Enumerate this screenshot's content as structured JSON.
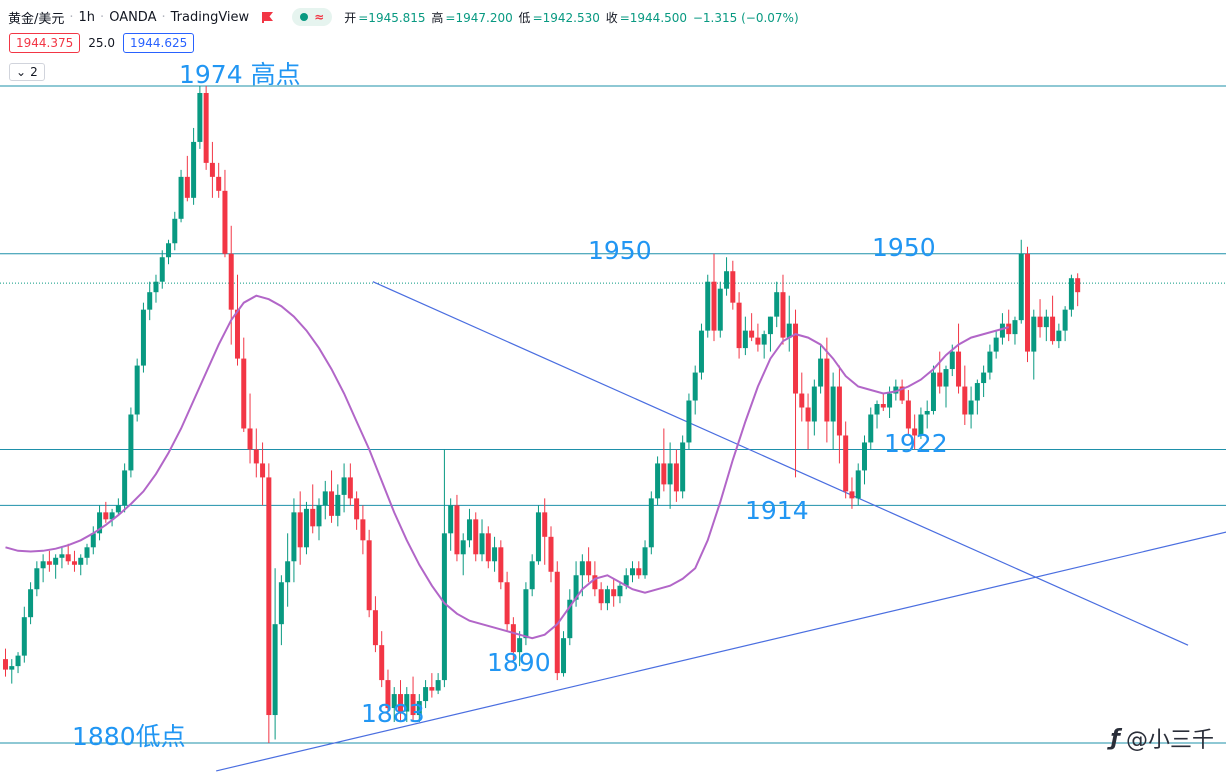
{
  "header": {
    "symbol": "黄金/美元",
    "interval": "1h",
    "broker": "OANDA",
    "platform": "TradingView",
    "ohlc": {
      "open_label": "开",
      "open": "=1945.815",
      "high_label": "高",
      "high": "=1947.200",
      "low_label": "低",
      "low": "=1942.530",
      "close_label": "收",
      "close": "=1944.500",
      "change": "−1.315 (−0.07%)"
    },
    "sell_price": "1944.375",
    "spread": "25.0",
    "buy_price": "1944.625",
    "indicators_count": "2"
  },
  "colors": {
    "up": "#089981",
    "down": "#f23645",
    "ma": "#b266c8",
    "hline": "#1e90aa",
    "trendline": "#4a6ee0",
    "annotation": "#2196f3"
  },
  "annotations": {
    "high_1974": "1974 高点",
    "res_left_1950": "1950",
    "res_right_1950": "1950",
    "sup_1922": "1922",
    "sup_1914": "1914",
    "low_1890": "1890",
    "low_1883": "1883",
    "low_1880": "1880低点"
  },
  "watermark": {
    "logo": "ƒ",
    "text": "@小三千"
  },
  "chart_data": {
    "type": "candlestick",
    "symbol": "黄金/美元",
    "interval": "1h",
    "ylim": [
      1876,
      1975
    ],
    "horizontal_levels": [
      1974,
      1950,
      1945.8,
      1922,
      1914,
      1880
    ],
    "trendlines": [
      {
        "name": "descending",
        "points": [
          [
            59,
            1946
          ],
          [
            189,
            1894
          ]
        ]
      },
      {
        "name": "ascending",
        "points": [
          [
            34,
            1876
          ],
          [
            199,
            1911
          ]
        ]
      }
    ],
    "candles_ohlc": [
      [
        1892.0,
        1893.5,
        1889.5,
        1890.5
      ],
      [
        1890.5,
        1892.0,
        1888.5,
        1891.0
      ],
      [
        1891.0,
        1893.0,
        1890.0,
        1892.5
      ],
      [
        1892.5,
        1899.5,
        1891.5,
        1898.0
      ],
      [
        1898.0,
        1903.0,
        1897.0,
        1902.0
      ],
      [
        1902.0,
        1906.0,
        1901.0,
        1905.0
      ],
      [
        1905.0,
        1907.0,
        1903.0,
        1906.0
      ],
      [
        1906.0,
        1907.5,
        1904.5,
        1905.5
      ],
      [
        1905.5,
        1907.0,
        1903.5,
        1906.5
      ],
      [
        1906.5,
        1908.0,
        1905.0,
        1907.0
      ],
      [
        1907.0,
        1908.5,
        1905.5,
        1906.0
      ],
      [
        1906.0,
        1907.5,
        1904.5,
        1905.5
      ],
      [
        1905.5,
        1907.0,
        1904.0,
        1906.5
      ],
      [
        1906.5,
        1908.5,
        1905.5,
        1908.0
      ],
      [
        1908.0,
        1911.0,
        1907.0,
        1910.0
      ],
      [
        1910.0,
        1914.0,
        1909.0,
        1913.0
      ],
      [
        1913.0,
        1914.5,
        1911.5,
        1912.0
      ],
      [
        1912.0,
        1913.5,
        1911.0,
        1913.0
      ],
      [
        1913.0,
        1915.0,
        1912.5,
        1914.0
      ],
      [
        1914.0,
        1920.0,
        1913.0,
        1919.0
      ],
      [
        1919.0,
        1928.0,
        1918.0,
        1927.0
      ],
      [
        1927.0,
        1935.0,
        1926.0,
        1934.0
      ],
      [
        1934.0,
        1943.0,
        1933.0,
        1942.0
      ],
      [
        1942.0,
        1946.0,
        1940.5,
        1944.5
      ],
      [
        1944.5,
        1947.0,
        1943.0,
        1946.0
      ],
      [
        1946.0,
        1950.5,
        1945.0,
        1949.5
      ],
      [
        1949.5,
        1952.0,
        1948.5,
        1951.5
      ],
      [
        1951.5,
        1956.0,
        1950.5,
        1955.0
      ],
      [
        1955.0,
        1962.0,
        1954.5,
        1961.0
      ],
      [
        1961.0,
        1964.0,
        1957.5,
        1958.0
      ],
      [
        1958.0,
        1968.0,
        1957.0,
        1966.0
      ],
      [
        1966.0,
        1974.0,
        1965.0,
        1973.0
      ],
      [
        1973.0,
        1974.0,
        1962.0,
        1963.0
      ],
      [
        1963.0,
        1966.0,
        1958.0,
        1961.0
      ],
      [
        1961.0,
        1963.0,
        1958.0,
        1959.0
      ],
      [
        1959.0,
        1962.0,
        1949.5,
        1950.0
      ],
      [
        1950.0,
        1954.0,
        1937.0,
        1942.0
      ],
      [
        1942.0,
        1947.0,
        1934.0,
        1935.0
      ],
      [
        1935.0,
        1938.0,
        1924.5,
        1925.0
      ],
      [
        1925.0,
        1930.0,
        1920.0,
        1922.0
      ],
      [
        1922.0,
        1925.0,
        1918.0,
        1920.0
      ],
      [
        1920.0,
        1923.0,
        1914.0,
        1918.0
      ],
      [
        1918.0,
        1920.0,
        1880.0,
        1884.0
      ],
      [
        1884.0,
        1905.0,
        1880.5,
        1897.0
      ],
      [
        1897.0,
        1904.0,
        1894.0,
        1903.0
      ],
      [
        1903.0,
        1910.0,
        1899.5,
        1906.0
      ],
      [
        1906.0,
        1915.0,
        1903.0,
        1913.0
      ],
      [
        1913.0,
        1916.0,
        1905.5,
        1908.0
      ],
      [
        1908.0,
        1914.5,
        1907.0,
        1913.5
      ],
      [
        1913.5,
        1917.0,
        1910.0,
        1911.0
      ],
      [
        1911.0,
        1915.0,
        1909.0,
        1914.0
      ],
      [
        1914.0,
        1917.5,
        1912.0,
        1916.0
      ],
      [
        1916.0,
        1919.0,
        1911.5,
        1912.5
      ],
      [
        1912.5,
        1917.0,
        1911.0,
        1915.5
      ],
      [
        1915.5,
        1920.0,
        1913.0,
        1918.0
      ],
      [
        1918.0,
        1920.0,
        1914.0,
        1915.0
      ],
      [
        1915.0,
        1916.0,
        1910.5,
        1912.0
      ],
      [
        1912.0,
        1914.0,
        1907.0,
        1909.0
      ],
      [
        1909.0,
        1910.5,
        1898.0,
        1899.0
      ],
      [
        1899.0,
        1901.0,
        1893.0,
        1894.0
      ],
      [
        1894.0,
        1896.0,
        1888.0,
        1889.0
      ],
      [
        1889.0,
        1890.5,
        1884.0,
        1885.0
      ],
      [
        1885.0,
        1888.0,
        1883.0,
        1887.0
      ],
      [
        1887.0,
        1889.0,
        1883.0,
        1884.5
      ],
      [
        1884.5,
        1888.0,
        1883.0,
        1887.0
      ],
      [
        1887.0,
        1889.5,
        1883.0,
        1884.0
      ],
      [
        1884.0,
        1887.0,
        1883.0,
        1886.0
      ],
      [
        1886.0,
        1889.0,
        1885.0,
        1888.0
      ],
      [
        1888.0,
        1890.0,
        1886.5,
        1887.5
      ],
      [
        1887.5,
        1890.0,
        1887.0,
        1889.0
      ],
      [
        1889.0,
        1922.0,
        1888.0,
        1910.0
      ],
      [
        1910.0,
        1915.0,
        1907.5,
        1914.0
      ],
      [
        1914.0,
        1915.5,
        1906.0,
        1907.0
      ],
      [
        1907.0,
        1910.0,
        1904.0,
        1909.0
      ],
      [
        1909.0,
        1913.5,
        1908.0,
        1912.0
      ],
      [
        1912.0,
        1913.0,
        1906.0,
        1907.0
      ],
      [
        1907.0,
        1912.0,
        1906.0,
        1910.0
      ],
      [
        1910.0,
        1911.0,
        1905.0,
        1906.0
      ],
      [
        1906.0,
        1909.5,
        1904.5,
        1908.0
      ],
      [
        1908.0,
        1909.0,
        1902.0,
        1903.0
      ],
      [
        1903.0,
        1904.5,
        1896.0,
        1897.0
      ],
      [
        1897.0,
        1898.0,
        1891.5,
        1893.0
      ],
      [
        1893.0,
        1896.0,
        1891.0,
        1895.0
      ],
      [
        1895.0,
        1903.0,
        1894.0,
        1902.0
      ],
      [
        1902.0,
        1907.0,
        1901.0,
        1906.0
      ],
      [
        1906.0,
        1914.0,
        1905.5,
        1913.0
      ],
      [
        1913.0,
        1915.0,
        1905.5,
        1909.5
      ],
      [
        1909.5,
        1911.0,
        1903.0,
        1904.5
      ],
      [
        1904.5,
        1906.0,
        1889.0,
        1890.0
      ],
      [
        1890.0,
        1896.0,
        1889.5,
        1895.0
      ],
      [
        1895.0,
        1902.0,
        1894.0,
        1900.5
      ],
      [
        1900.5,
        1906.0,
        1899.5,
        1904.0
      ],
      [
        1904.0,
        1907.0,
        1901.0,
        1906.0
      ],
      [
        1906.0,
        1908.0,
        1903.0,
        1904.0
      ],
      [
        1904.0,
        1906.0,
        1901.0,
        1902.0
      ],
      [
        1902.0,
        1903.0,
        1899.0,
        1900.0
      ],
      [
        1900.0,
        1902.5,
        1899.0,
        1902.0
      ],
      [
        1902.0,
        1903.5,
        1899.5,
        1901.0
      ],
      [
        1901.0,
        1903.0,
        1900.0,
        1902.5
      ],
      [
        1902.5,
        1905.0,
        1902.0,
        1904.0
      ],
      [
        1904.0,
        1906.0,
        1903.0,
        1905.0
      ],
      [
        1905.0,
        1906.0,
        1903.5,
        1904.0
      ],
      [
        1904.0,
        1909.0,
        1903.5,
        1908.0
      ],
      [
        1908.0,
        1916.0,
        1907.0,
        1915.0
      ],
      [
        1915.0,
        1921.0,
        1914.0,
        1920.0
      ],
      [
        1920.0,
        1925.0,
        1916.0,
        1917.0
      ],
      [
        1917.0,
        1923.0,
        1913.5,
        1920.0
      ],
      [
        1920.0,
        1922.0,
        1914.5,
        1916.0
      ],
      [
        1916.0,
        1924.0,
        1915.0,
        1923.0
      ],
      [
        1923.0,
        1930.0,
        1922.0,
        1929.0
      ],
      [
        1929.0,
        1934.0,
        1927.0,
        1933.0
      ],
      [
        1933.0,
        1940.0,
        1932.0,
        1939.0
      ],
      [
        1939.0,
        1947.0,
        1938.0,
        1946.0
      ],
      [
        1946.0,
        1950.0,
        1937.5,
        1939.0
      ],
      [
        1939.0,
        1946.0,
        1938.0,
        1945.0
      ],
      [
        1945.0,
        1949.5,
        1944.0,
        1947.5
      ],
      [
        1947.5,
        1949.0,
        1942.0,
        1943.0
      ],
      [
        1943.0,
        1944.5,
        1935.0,
        1936.5
      ],
      [
        1936.5,
        1941.0,
        1935.5,
        1939.0
      ],
      [
        1939.0,
        1941.5,
        1937.5,
        1938.0
      ],
      [
        1938.0,
        1940.0,
        1936.0,
        1937.0
      ],
      [
        1937.0,
        1939.0,
        1935.0,
        1938.5
      ],
      [
        1938.5,
        1941.0,
        1936.0,
        1941.0
      ],
      [
        1941.0,
        1946.0,
        1939.5,
        1944.5
      ],
      [
        1944.5,
        1947.0,
        1937.0,
        1938.0
      ],
      [
        1938.0,
        1944.0,
        1936.0,
        1940.0
      ],
      [
        1940.0,
        1942.0,
        1918.0,
        1930.0
      ],
      [
        1930.0,
        1933.0,
        1926.0,
        1928.0
      ],
      [
        1928.0,
        1930.0,
        1922.0,
        1926.0
      ],
      [
        1926.0,
        1932.0,
        1924.0,
        1931.0
      ],
      [
        1931.0,
        1937.0,
        1930.0,
        1935.0
      ],
      [
        1935.0,
        1938.0,
        1923.0,
        1926.0
      ],
      [
        1926.0,
        1933.0,
        1922.0,
        1931.0
      ],
      [
        1931.0,
        1934.0,
        1920.0,
        1924.0
      ],
      [
        1924.0,
        1926.0,
        1915.0,
        1916.0
      ],
      [
        1916.0,
        1918.0,
        1913.5,
        1915.0
      ],
      [
        1915.0,
        1920.0,
        1914.0,
        1919.0
      ],
      [
        1919.0,
        1924.0,
        1917.0,
        1923.0
      ],
      [
        1923.0,
        1928.0,
        1922.0,
        1927.0
      ],
      [
        1927.0,
        1929.0,
        1925.0,
        1928.5
      ],
      [
        1928.5,
        1930.0,
        1927.5,
        1928.0
      ],
      [
        1928.0,
        1931.0,
        1926.5,
        1930.0
      ],
      [
        1930.0,
        1932.0,
        1929.0,
        1931.0
      ],
      [
        1931.0,
        1932.0,
        1928.5,
        1929.0
      ],
      [
        1929.0,
        1930.5,
        1924.0,
        1925.0
      ],
      [
        1925.0,
        1927.0,
        1922.0,
        1924.0
      ],
      [
        1924.0,
        1928.0,
        1923.5,
        1927.0
      ],
      [
        1927.0,
        1929.0,
        1925.0,
        1927.5
      ],
      [
        1927.5,
        1934.0,
        1927.0,
        1933.0
      ],
      [
        1933.0,
        1936.0,
        1930.0,
        1931.0
      ],
      [
        1931.0,
        1934.0,
        1928.0,
        1933.5
      ],
      [
        1933.5,
        1937.0,
        1932.5,
        1936.0
      ],
      [
        1936.0,
        1940.0,
        1930.0,
        1931.0
      ],
      [
        1931.0,
        1934.0,
        1925.5,
        1927.0
      ],
      [
        1927.0,
        1931.0,
        1925.0,
        1929.0
      ],
      [
        1929.0,
        1932.0,
        1927.0,
        1931.5
      ],
      [
        1931.5,
        1934.0,
        1929.5,
        1933.0
      ],
      [
        1933.0,
        1937.0,
        1932.0,
        1936.0
      ],
      [
        1936.0,
        1939.0,
        1935.0,
        1938.0
      ],
      [
        1938.0,
        1941.5,
        1937.0,
        1940.0
      ],
      [
        1940.0,
        1942.0,
        1937.5,
        1938.5
      ],
      [
        1938.5,
        1941.0,
        1937.0,
        1940.5
      ],
      [
        1940.5,
        1952.0,
        1940.0,
        1950.0
      ],
      [
        1950.0,
        1951.0,
        1934.5,
        1936.0
      ],
      [
        1936.0,
        1942.0,
        1932.0,
        1941.0
      ],
      [
        1941.0,
        1943.5,
        1938.0,
        1939.5
      ],
      [
        1939.5,
        1942.0,
        1937.5,
        1941.0
      ],
      [
        1941.0,
        1944.0,
        1937.0,
        1937.5
      ],
      [
        1937.5,
        1940.0,
        1936.5,
        1939.0
      ],
      [
        1939.0,
        1942.5,
        1937.5,
        1942.0
      ],
      [
        1942.0,
        1947.0,
        1941.0,
        1946.5
      ],
      [
        1946.5,
        1947.2,
        1942.5,
        1944.5
      ]
    ],
    "moving_average": [
      1908.0,
      1907.5,
      1907.4,
      1907.5,
      1907.8,
      1908.3,
      1909.0,
      1910.0,
      1911.2,
      1912.6,
      1914.2,
      1916.0,
      1918.5,
      1921.5,
      1925.0,
      1929.0,
      1933.0,
      1937.0,
      1940.5,
      1943.0,
      1944.0,
      1943.5,
      1942.5,
      1941.0,
      1939.0,
      1936.5,
      1933.5,
      1930.0,
      1926.0,
      1922.0,
      1917.5,
      1913.0,
      1909.0,
      1905.5,
      1902.5,
      1900.0,
      1898.5,
      1897.5,
      1897.0,
      1896.5,
      1896.0,
      1895.5,
      1895.0,
      1895.5,
      1897.0,
      1899.5,
      1902.0,
      1903.5,
      1904.0,
      1903.0,
      1902.0,
      1901.5,
      1902.0,
      1902.5,
      1903.5,
      1905.0,
      1909.0,
      1914.5,
      1920.5,
      1926.0,
      1931.0,
      1935.0,
      1937.5,
      1938.5,
      1938.0,
      1937.0,
      1935.0,
      1932.5,
      1931.0,
      1930.5,
      1930.0,
      1930.3,
      1931.0,
      1932.0,
      1933.5,
      1935.5,
      1937.0,
      1938.0,
      1938.5,
      1939.0,
      1939.5
    ]
  }
}
